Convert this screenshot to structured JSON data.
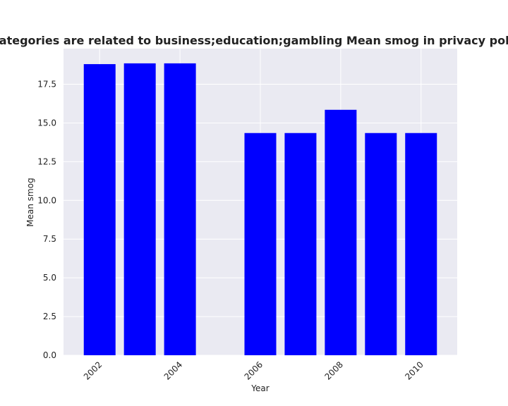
{
  "chart_data": {
    "type": "bar",
    "title": "Apps when categories are related to business;education;gambling Mean smog in privacy policies by Year",
    "xlabel": "Year",
    "ylabel": "Mean smog",
    "x": [
      2002,
      2003,
      2004,
      2006,
      2007,
      2008,
      2009,
      2010
    ],
    "values": [
      18.8,
      18.85,
      18.85,
      14.35,
      14.35,
      15.85,
      14.35,
      14.35
    ],
    "xticks": [
      "2002",
      "2004",
      "2006",
      "2008",
      "2010"
    ],
    "xtick_values": [
      2002,
      2004,
      2006,
      2008,
      2010
    ],
    "yticks": [
      "0.0",
      "2.5",
      "5.0",
      "7.5",
      "10.0",
      "12.5",
      "15.0",
      "17.5"
    ],
    "ytick_values": [
      0,
      2.5,
      5,
      7.5,
      10,
      12.5,
      15,
      17.5
    ],
    "xlim": [
      2001.1,
      2010.9
    ],
    "ylim": [
      0,
      19.8
    ],
    "grid": true,
    "bar_color": "#0000ff",
    "background_color": "#eaeaf2",
    "grid_color": "#ffffff"
  }
}
